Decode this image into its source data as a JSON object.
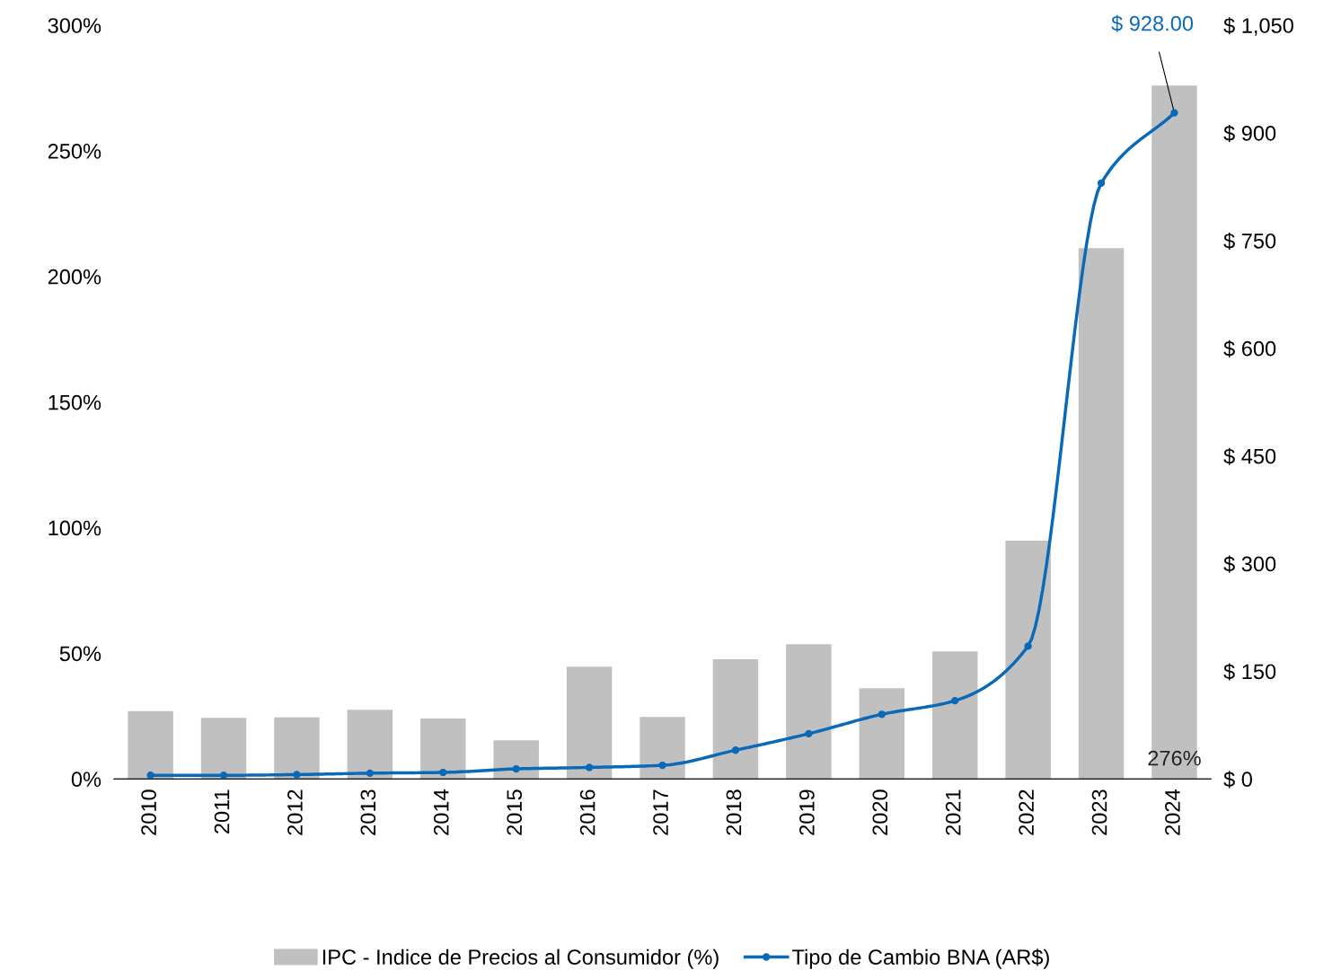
{
  "chart_data": {
    "type": "bar",
    "categories": [
      "2010",
      "2011",
      "2012",
      "2013",
      "2014",
      "2015",
      "2016",
      "2017",
      "2018",
      "2019",
      "2020",
      "2021",
      "2022",
      "2023",
      "2024"
    ],
    "series": [
      {
        "name": "IPC - Indice de Precios al Consumidor (%)",
        "color": "#c0c0c0",
        "values": [
          27,
          24.3,
          24.5,
          27.5,
          24,
          15.4,
          44.7,
          24.7,
          47.6,
          53.6,
          36.1,
          50.8,
          94.8,
          211.3,
          276
        ],
        "value_labels": [
          null,
          null,
          null,
          null,
          null,
          null,
          null,
          null,
          null,
          null,
          null,
          null,
          null,
          null,
          "276%"
        ]
      },
      {
        "name": "Tipo de Cambio BNA (AR$)",
        "type": "line",
        "axis": "y2",
        "color": "#0a6ab8",
        "marker": "circle",
        "values": [
          5,
          5,
          6,
          8,
          9,
          14,
          16,
          19,
          40,
          63,
          90,
          109,
          185,
          830,
          928
        ],
        "value_labels": [
          null,
          null,
          null,
          null,
          null,
          null,
          null,
          null,
          null,
          null,
          null,
          null,
          null,
          null,
          "$ 928.00"
        ]
      }
    ],
    "ylim": [
      0,
      300
    ],
    "yticks": [
      {
        "value": 0,
        "label": "0%"
      },
      {
        "value": 50,
        "label": "50%"
      },
      {
        "value": 100,
        "label": "100%"
      },
      {
        "value": 150,
        "label": "150%"
      },
      {
        "value": 200,
        "label": "200%"
      },
      {
        "value": 250,
        "label": "250%"
      },
      {
        "value": 300,
        "label": "300%"
      }
    ],
    "y2lim": [
      0,
      1050
    ],
    "y2ticks": [
      {
        "value": 0,
        "label": "$ 0"
      },
      {
        "value": 150,
        "label": "$ 150"
      },
      {
        "value": 300,
        "label": "$ 300"
      },
      {
        "value": 450,
        "label": "$ 450"
      },
      {
        "value": 600,
        "label": "$ 600"
      },
      {
        "value": 750,
        "label": "$ 750"
      },
      {
        "value": 900,
        "label": "$ 900"
      },
      {
        "value": 1050,
        "label": "$ 1,050"
      }
    ],
    "grid": false,
    "legend": "bottom"
  }
}
